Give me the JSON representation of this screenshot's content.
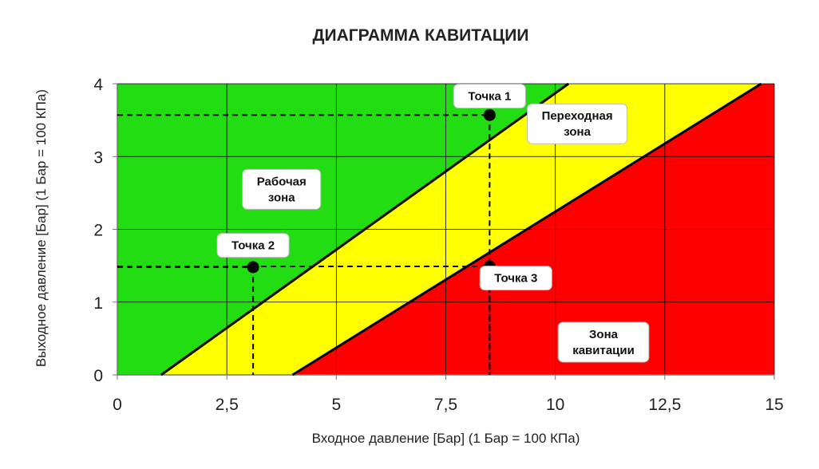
{
  "chart_data": {
    "type": "area",
    "title": "ДИАГРАММА КАВИТАЦИИ",
    "xlabel": "Входное давление [Бар] (1 Бар = 100 КПа)",
    "ylabel": "Выходное давление [Бар] (1 Бар = 100 КПа)",
    "xlim": [
      0,
      15
    ],
    "ylim": [
      0,
      4
    ],
    "x_ticks": [
      0,
      2.5,
      5,
      7.5,
      10,
      12.5,
      15
    ],
    "x_tick_labels": [
      "0",
      "2,5",
      "5",
      "7,5",
      "10",
      "12,5",
      "15"
    ],
    "y_ticks": [
      0,
      1,
      2,
      3,
      4
    ],
    "y_tick_labels": [
      "0",
      "1",
      "2",
      "3",
      "4"
    ],
    "grid": true,
    "boundaries": [
      {
        "name": "",
        "points": [
          [
            1,
            0
          ],
          [
            10.3,
            4
          ]
        ]
      },
      {
        "name": "",
        "points": [
          [
            4,
            0
          ],
          [
            14.7,
            4
          ]
        ]
      }
    ],
    "zones": [
      {
        "label": [
          "Рабочая",
          "зона"
        ],
        "color": "#22dd11",
        "anchor": [
          3.75,
          2.55
        ]
      },
      {
        "label": [
          "Переходная",
          "зона"
        ],
        "color": "#ffff00",
        "anchor": [
          10.5,
          3.45
        ]
      },
      {
        "label": [
          "Зона",
          "кавитации"
        ],
        "color": "#ff0000",
        "anchor": [
          11.1,
          0.45
        ]
      }
    ],
    "points": [
      {
        "label": "Точка 1",
        "x": 8.5,
        "y": 3.57,
        "label_anchor": [
          8.5,
          3.83
        ]
      },
      {
        "label": "Точка 2",
        "x": 3.1,
        "y": 1.48,
        "label_anchor": [
          3.1,
          1.78
        ]
      },
      {
        "label": "Точка 3",
        "x": 8.5,
        "y": 1.49,
        "label_anchor": [
          9.1,
          1.33
        ]
      }
    ]
  },
  "colors": {
    "zone_green": "#22dd11",
    "zone_yellow": "#ffff00",
    "zone_red": "#ff0000",
    "line": "#000000",
    "grid": "#000000"
  }
}
